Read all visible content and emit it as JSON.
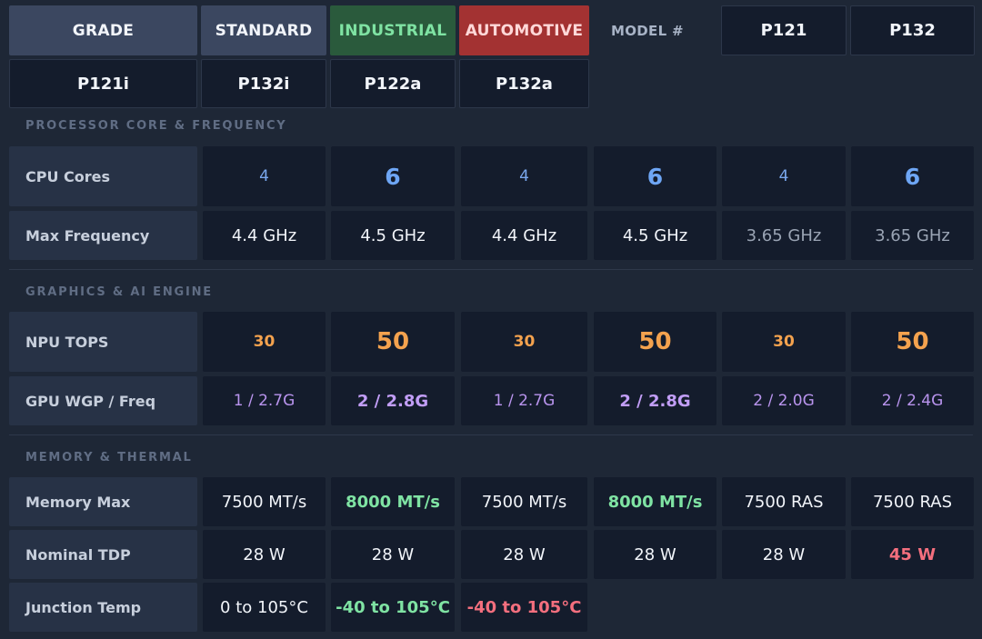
{
  "header": {
    "grade": "GRADE",
    "standard": "STANDARD",
    "industrial": "INDUSTRIAL",
    "automotive": "AUTOMOTIVE",
    "model_num": "MODEL #",
    "models": [
      "P121",
      "P132",
      "P121i",
      "P132i",
      "P122a",
      "P132a"
    ]
  },
  "sections": {
    "processor": "PROCESSOR CORE & FREQUENCY",
    "graphics": "GRAPHICS & AI ENGINE",
    "memory": "MEMORY & THERMAL"
  },
  "rows": {
    "cpu_cores": {
      "label": "CPU Cores",
      "values": [
        "4",
        "6",
        "4",
        "6",
        "4",
        "6"
      ]
    },
    "max_freq": {
      "label": "Max Frequency",
      "values": [
        "4.4 GHz",
        "4.5 GHz",
        "4.4 GHz",
        "4.5 GHz",
        "3.65 GHz",
        "3.65 GHz"
      ]
    },
    "npu_tops": {
      "label": "NPU TOPS",
      "values": [
        "30",
        "50",
        "30",
        "50",
        "30",
        "50"
      ]
    },
    "gpu": {
      "label": "GPU WGP / Freq",
      "values": [
        "1 / 2.7G",
        "2 / 2.8G",
        "1 / 2.7G",
        "2 / 2.8G",
        "2 / 2.0G",
        "2 / 2.4G"
      ]
    },
    "memory_max": {
      "label": "Memory Max",
      "values": [
        "7500 MT/s",
        "8000 MT/s",
        "7500 MT/s",
        "8000 MT/s",
        "7500 RAS",
        "7500 RAS"
      ]
    },
    "tdp": {
      "label": "Nominal TDP",
      "values": [
        "28 W",
        "28 W",
        "28 W",
        "28 W",
        "28 W",
        "45 W"
      ]
    },
    "junction": {
      "label": "Junction Temp",
      "values": [
        "0 to 105°C",
        "-40 to 105°C",
        "-40 to 105°C"
      ]
    }
  },
  "colors": {
    "background": "#1e2736",
    "cell": "#141c2c",
    "label_cell": "#273246",
    "industrial": "#2a5a3c",
    "automotive": "#a33232",
    "green_text": "#7fe3a3",
    "red_text": "#f46f7e",
    "orange_text": "#f4a24e",
    "purple_text": "#b994ee",
    "blue_text": "#6ea6f5"
  }
}
